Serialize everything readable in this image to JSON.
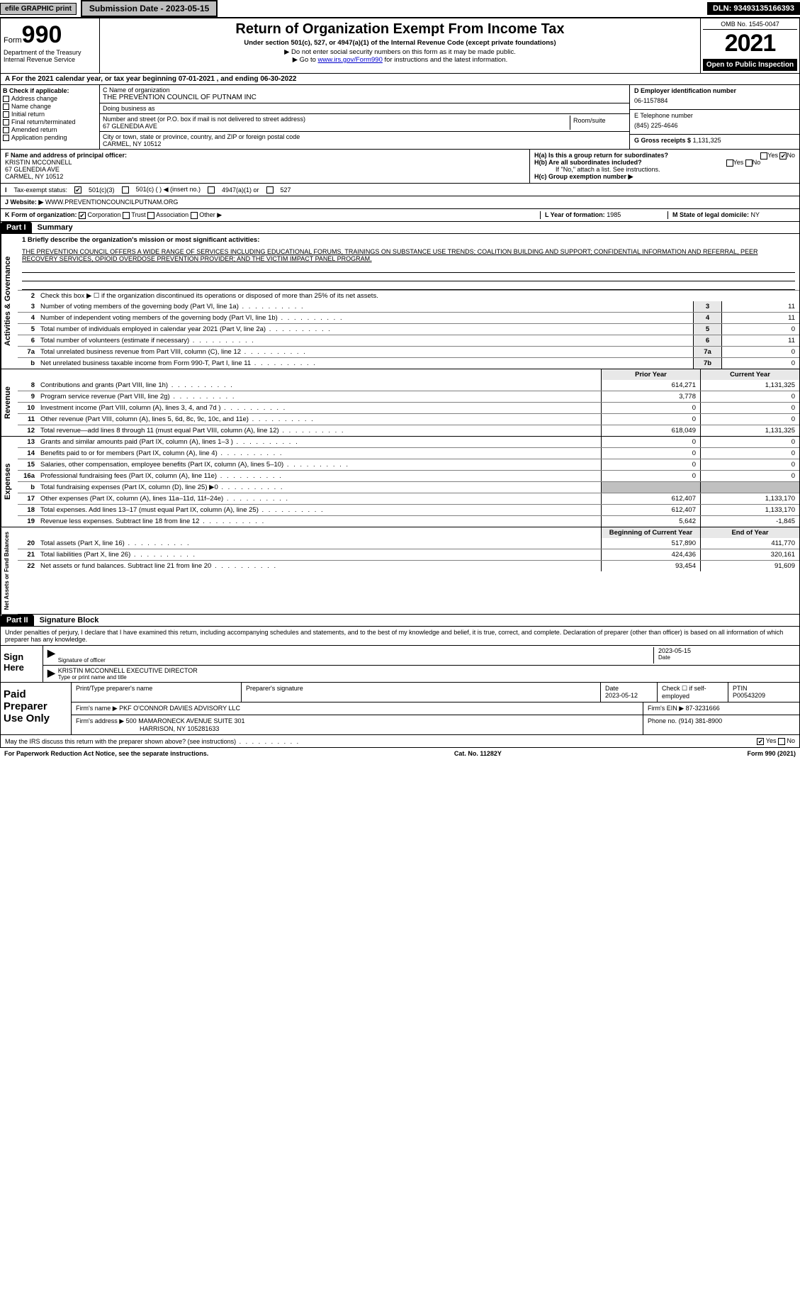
{
  "top": {
    "efile": "efile GRAPHIC print",
    "submission": "Submission Date - 2023-05-15",
    "dln": "DLN: 93493135166393"
  },
  "header": {
    "form_prefix": "Form",
    "form_num": "990",
    "title": "Return of Organization Exempt From Income Tax",
    "sub": "Under section 501(c), 527, or 4947(a)(1) of the Internal Revenue Code (except private foundations)",
    "note1": "▶ Do not enter social security numbers on this form as it may be made public.",
    "note2_prefix": "▶ Go to ",
    "note2_link": "www.irs.gov/Form990",
    "note2_suffix": " for instructions and the latest information.",
    "omb": "OMB No. 1545-0047",
    "year": "2021",
    "open": "Open to Public Inspection",
    "dept": "Department of the Treasury Internal Revenue Service"
  },
  "line_a": "For the 2021 calendar year, or tax year beginning 07-01-2021    , and ending 06-30-2022",
  "block_b": {
    "hdr": "B Check if applicable:",
    "items": [
      "Address change",
      "Name change",
      "Initial return",
      "Final return/terminated",
      "Amended return",
      "Application pending"
    ]
  },
  "block_c": {
    "c_label": "C Name of organization",
    "org": "THE PREVENTION COUNCIL OF PUTNAM INC",
    "dba_label": "Doing business as",
    "addr_label": "Number and street (or P.O. box if mail is not delivered to street address)",
    "room_label": "Room/suite",
    "addr": "67 GLENEDIA AVE",
    "city_label": "City or town, state or province, country, and ZIP or foreign postal code",
    "city": "CARMEL, NY  10512"
  },
  "block_d": {
    "d_label": "D Employer identification number",
    "ein": "06-1157884",
    "e_label": "E Telephone number",
    "phone": "(845) 225-4646",
    "g_label": "G Gross receipts $",
    "gross": "1,131,325"
  },
  "block_f": {
    "f_label": "F Name and address of principal officer:",
    "name": "KRISTIN MCCONNELL",
    "addr1": "67 GLENEDIA AVE",
    "addr2": "CARMEL, NY  10512"
  },
  "block_h": {
    "ha": "H(a)  Is this a group return for subordinates?",
    "hb": "H(b)  Are all subordinates included?",
    "yn_yes": "Yes",
    "yn_no": "No",
    "hb_note": "If \"No,\" attach a list. See instructions.",
    "hc": "H(c)  Group exemption number ▶"
  },
  "row_i": {
    "label": "Tax-exempt status:",
    "o1": "501(c)(3)",
    "o2": "501(c) (   ) ◀ (insert no.)",
    "o3": "4947(a)(1) or",
    "o4": "527"
  },
  "row_j": {
    "label": "Website: ▶",
    "url": "WWW.PREVENTIONCOUNCILPUTNAM.ORG"
  },
  "row_k": {
    "k_label": "K Form of organization:",
    "opts": [
      "Corporation",
      "Trust",
      "Association",
      "Other ▶"
    ],
    "l_label": "L Year of formation:",
    "l_val": "1985",
    "m_label": "M State of legal domicile:",
    "m_val": "NY"
  },
  "part1": {
    "hdr": "Part I",
    "title": "Summary"
  },
  "summary": {
    "line1_label": "1  Briefly describe the organization's mission or most significant activities:",
    "mission": "THE PREVENTION COUNCIL OFFERS A WIDE RANGE OF SERVICES INCLUDING EDUCATIONAL FORUMS, TRAININGS ON SUBSTANCE USE TRENDS; COALITION BUILDING AND SUPPORT; CONFIDENTIAL INFORMATION AND REFERRAL, PEER RECOVERY SERVICES, OPIOID OVERDOSE PREVENTION PROVIDER; AND THE VICTIM IMPACT PANEL PROGRAM.",
    "line2": "Check this box ▶ ☐  if the organization discontinued its operations or disposed of more than 25% of its net assets.",
    "rows_gov": [
      {
        "n": "3",
        "t": "Number of voting members of the governing body (Part VI, line 1a)",
        "box": "3",
        "v": "11"
      },
      {
        "n": "4",
        "t": "Number of independent voting members of the governing body (Part VI, line 1b)",
        "box": "4",
        "v": "11"
      },
      {
        "n": "5",
        "t": "Total number of individuals employed in calendar year 2021 (Part V, line 2a)",
        "box": "5",
        "v": "0"
      },
      {
        "n": "6",
        "t": "Total number of volunteers (estimate if necessary)",
        "box": "6",
        "v": "11"
      },
      {
        "n": "7a",
        "t": "Total unrelated business revenue from Part VIII, column (C), line 12",
        "box": "7a",
        "v": "0"
      },
      {
        "n": "b",
        "t": "Net unrelated business taxable income from Form 990-T, Part I, line 11",
        "box": "7b",
        "v": "0"
      }
    ],
    "prior_hdr": "Prior Year",
    "curr_hdr": "Current Year",
    "rev": [
      {
        "n": "8",
        "t": "Contributions and grants (Part VIII, line 1h)",
        "p": "614,271",
        "c": "1,131,325"
      },
      {
        "n": "9",
        "t": "Program service revenue (Part VIII, line 2g)",
        "p": "3,778",
        "c": "0"
      },
      {
        "n": "10",
        "t": "Investment income (Part VIII, column (A), lines 3, 4, and 7d )",
        "p": "0",
        "c": "0"
      },
      {
        "n": "11",
        "t": "Other revenue (Part VIII, column (A), lines 5, 6d, 8c, 9c, 10c, and 11e)",
        "p": "0",
        "c": "0"
      },
      {
        "n": "12",
        "t": "Total revenue—add lines 8 through 11 (must equal Part VIII, column (A), line 12)",
        "p": "618,049",
        "c": "1,131,325"
      }
    ],
    "exp": [
      {
        "n": "13",
        "t": "Grants and similar amounts paid (Part IX, column (A), lines 1–3 )",
        "p": "0",
        "c": "0"
      },
      {
        "n": "14",
        "t": "Benefits paid to or for members (Part IX, column (A), line 4)",
        "p": "0",
        "c": "0"
      },
      {
        "n": "15",
        "t": "Salaries, other compensation, employee benefits (Part IX, column (A), lines 5–10)",
        "p": "0",
        "c": "0"
      },
      {
        "n": "16a",
        "t": "Professional fundraising fees (Part IX, column (A), line 11e)",
        "p": "0",
        "c": "0"
      },
      {
        "n": "b",
        "t": "Total fundraising expenses (Part IX, column (D), line 25) ▶0",
        "p": "",
        "c": ""
      },
      {
        "n": "17",
        "t": "Other expenses (Part IX, column (A), lines 11a–11d, 11f–24e)",
        "p": "612,407",
        "c": "1,133,170"
      },
      {
        "n": "18",
        "t": "Total expenses. Add lines 13–17 (must equal Part IX, column (A), line 25)",
        "p": "612,407",
        "c": "1,133,170"
      },
      {
        "n": "19",
        "t": "Revenue less expenses. Subtract line 18 from line 12",
        "p": "5,642",
        "c": "-1,845"
      }
    ],
    "bal_hdr_b": "Beginning of Current Year",
    "bal_hdr_e": "End of Year",
    "bal": [
      {
        "n": "20",
        "t": "Total assets (Part X, line 16)",
        "p": "517,890",
        "c": "411,770"
      },
      {
        "n": "21",
        "t": "Total liabilities (Part X, line 26)",
        "p": "424,436",
        "c": "320,161"
      },
      {
        "n": "22",
        "t": "Net assets or fund balances. Subtract line 21 from line 20",
        "p": "93,454",
        "c": "91,609"
      }
    ]
  },
  "vtabs": {
    "gov": "Activities & Governance",
    "rev": "Revenue",
    "exp": "Expenses",
    "bal": "Net Assets or Fund Balances"
  },
  "part2": {
    "hdr": "Part II",
    "title": "Signature Block",
    "penalty": "Under penalties of perjury, I declare that I have examined this return, including accompanying schedules and statements, and to the best of my knowledge and belief, it is true, correct, and complete. Declaration of preparer (other than officer) is based on all information of which preparer has any knowledge."
  },
  "sign": {
    "left": "Sign Here",
    "sig_label": "Signature of officer",
    "date_label": "Date",
    "date": "2023-05-15",
    "name": "KRISTIN MCCONNELL  EXECUTIVE DIRECTOR",
    "name_label": "Type or print name and title"
  },
  "paid": {
    "left": "Paid Preparer Use Only",
    "h1": "Print/Type preparer's name",
    "h2": "Preparer's signature",
    "h3": "Date",
    "h4": "Check ☐ if self-employed",
    "h5": "PTIN",
    "date": "2023-05-12",
    "ptin": "P00543209",
    "firm_label": "Firm's name    ▶",
    "firm": "PKF O'CONNOR DAVIES ADVISORY LLC",
    "ein_label": "Firm's EIN ▶",
    "ein": "87-3231666",
    "addr_label": "Firm's address ▶",
    "addr1": "500 MAMARONECK AVENUE SUITE 301",
    "addr2": "HARRISON, NY  105281633",
    "phone_label": "Phone no.",
    "phone": "(914) 381-8900"
  },
  "footer": {
    "q": "May the IRS discuss this return with the preparer shown above? (see instructions)",
    "yes": "Yes",
    "no": "No",
    "pra": "For Paperwork Reduction Act Notice, see the separate instructions.",
    "cat": "Cat. No. 11282Y",
    "form": "Form 990 (2021)"
  }
}
